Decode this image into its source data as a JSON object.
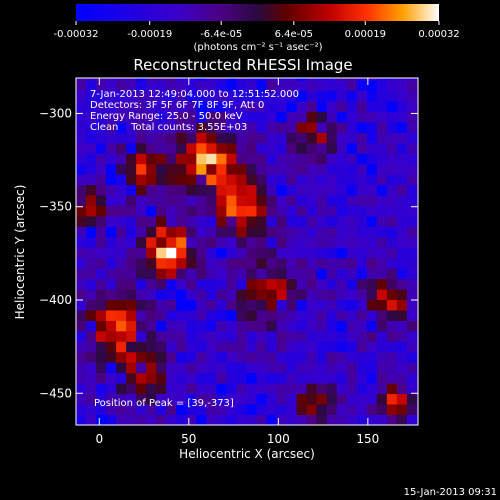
{
  "chart_data": {
    "type": "heatmap",
    "title": "Reconstructed RHESSI Image",
    "xlabel": "Heliocentric X (arcsec)",
    "ylabel": "Heliocentric Y (arcsec)",
    "xlim": [
      -13,
      178
    ],
    "ylim": [
      -467,
      -281
    ],
    "x_ticks": [
      "0",
      "50",
      "100",
      "150"
    ],
    "x_tick_values": [
      0,
      50,
      100,
      150
    ],
    "y_ticks": [
      "-300",
      "-350",
      "-400",
      "-450"
    ],
    "y_tick_values": [
      -300,
      -350,
      -400,
      -450
    ],
    "colorbar": {
      "ticks": [
        "-0.00032",
        "-0.00019",
        "-6.4e-05",
        "6.4e-05",
        "0.00019",
        "0.00032"
      ],
      "tick_values": [
        -0.00032,
        -0.00019,
        -6.4e-05,
        6.4e-05,
        0.00019,
        0.00032
      ],
      "range": [
        -0.00032,
        0.00032
      ],
      "units": "(photons cm⁻² s⁻¹ asec⁻²)",
      "colors": [
        "#0000ff",
        "#4a00ff",
        "#4b0082",
        "#2a0a40",
        "#600000",
        "#c00000",
        "#ff3000",
        "#ffa000",
        "#ffffff"
      ]
    },
    "annotations": {
      "line1": "7-Jan-2013 12:49:04.000 to 12:51:52.000",
      "line2": "Detectors: 3F 5F 6F 7F 8F 9F, Att 0",
      "line3": "Energy Range: 25.0 - 50.0 keV",
      "line4": "Clean    Total counts: 3.55E+03",
      "peak": "Position of Peak = [39,-373]"
    },
    "peak_position": [
      39,
      -373
    ],
    "blobs": [
      {
        "x": 39,
        "y": -373,
        "sigma": 10,
        "amp": 1.0
      },
      {
        "x": 60,
        "y": -325,
        "sigma": 12,
        "amp": 0.85
      },
      {
        "x": 80,
        "y": -350,
        "sigma": 11,
        "amp": 0.75
      },
      {
        "x": 25,
        "y": -330,
        "sigma": 9,
        "amp": 0.65
      },
      {
        "x": 10,
        "y": -415,
        "sigma": 12,
        "amp": 0.7
      },
      {
        "x": 25,
        "y": -440,
        "sigma": 10,
        "amp": 0.55
      },
      {
        "x": 95,
        "y": -395,
        "sigma": 12,
        "amp": 0.55
      },
      {
        "x": 120,
        "y": -310,
        "sigma": 9,
        "amp": 0.5
      },
      {
        "x": 160,
        "y": -400,
        "sigma": 10,
        "amp": 0.6
      },
      {
        "x": 165,
        "y": -455,
        "sigma": 7,
        "amp": 0.6
      },
      {
        "x": 120,
        "y": -455,
        "sigma": 8,
        "amp": 0.45
      },
      {
        "x": -5,
        "y": -350,
        "sigma": 8,
        "amp": 0.5
      }
    ]
  },
  "footer": {
    "timestamp": "15-Jan-2013 09:31"
  }
}
